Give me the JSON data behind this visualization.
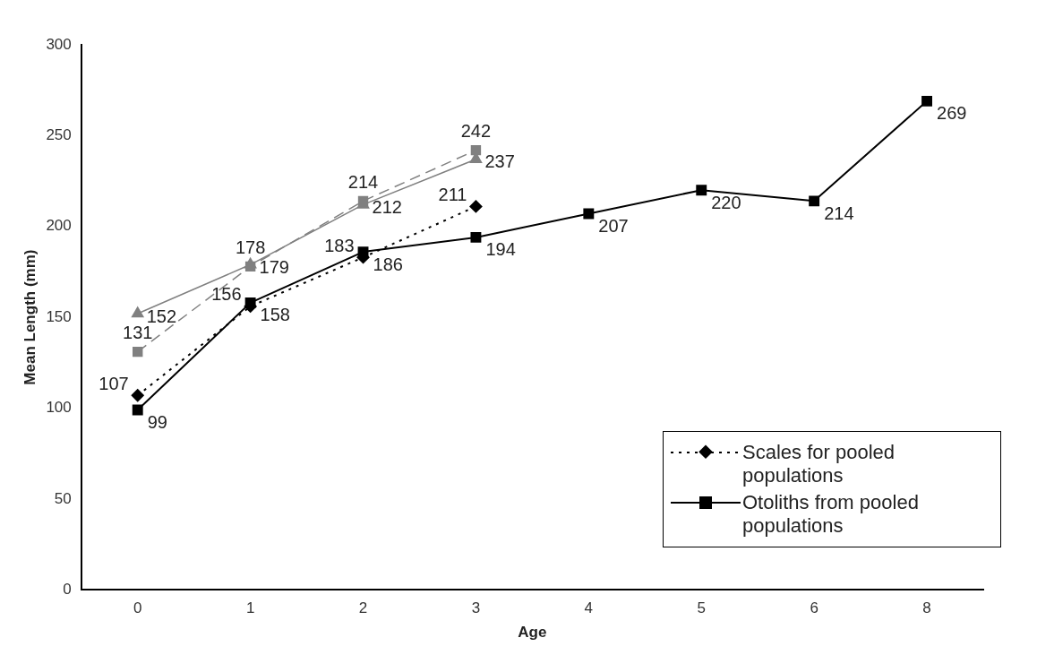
{
  "chart_data": {
    "type": "line",
    "xlabel": "Age",
    "ylabel": "Mean Length (mm)",
    "categories": [
      "0",
      "1",
      "2",
      "3",
      "4",
      "5",
      "6",
      "8"
    ],
    "ylim": [
      0,
      300
    ],
    "yticks": [
      0,
      50,
      100,
      150,
      200,
      250,
      300
    ],
    "grid": false,
    "legend": "bottom right",
    "data_labels": true,
    "series": [
      {
        "color": "#808080",
        "marker": "triangle",
        "line_style": "solid",
        "values": [
          152,
          179,
          212,
          237,
          null,
          null,
          null,
          null
        ]
      },
      {
        "color": "#808080",
        "marker": "square",
        "line_style": "dashed",
        "values": [
          131,
          178,
          214,
          242,
          null,
          null,
          null,
          null
        ]
      },
      {
        "name": "Scales for pooled populations",
        "color": "#000000",
        "marker": "diamond",
        "line_style": "dotted",
        "values": [
          107,
          156,
          183,
          211,
          null,
          null,
          null,
          null
        ]
      },
      {
        "name": "Otoliths from pooled populations",
        "color": "#000000",
        "marker": "square",
        "line_style": "solid",
        "values": [
          99,
          158,
          186,
          194,
          207,
          220,
          214,
          269
        ]
      }
    ]
  }
}
